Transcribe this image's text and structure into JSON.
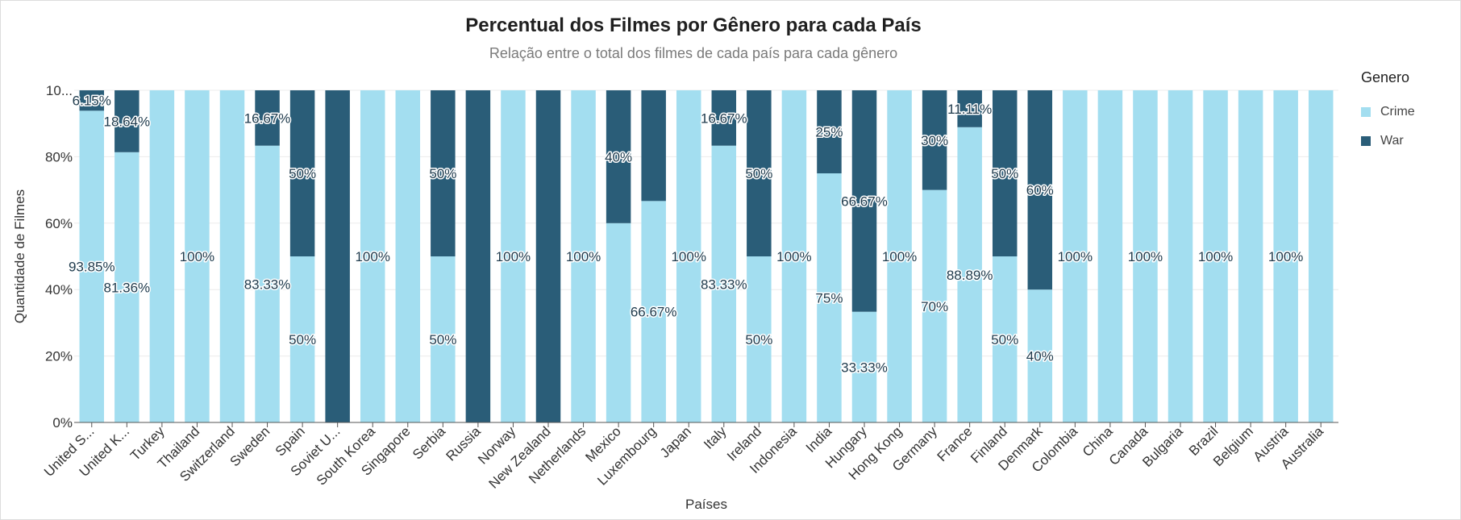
{
  "title": "Percentual dos Filmes por Gênero para cada País",
  "subtitle": "Relação entre o total dos filmes de cada país para cada gênero",
  "legend": {
    "title": "Genero",
    "items": [
      {
        "label": "Crime",
        "color": "#a3def0"
      },
      {
        "label": "War",
        "color": "#2a5d78"
      }
    ]
  },
  "chart_data": {
    "type": "bar",
    "stacked": true,
    "title": "Percentual dos Filmes por Gênero para cada País",
    "subtitle": "Relação entre o total dos filmes de cada país para cada gênero",
    "xlabel": "Países",
    "ylabel": "Quantidade de Filmes",
    "ylim": [
      0,
      100
    ],
    "y_tick_labels": [
      "0%",
      "20%",
      "40%",
      "60%",
      "80%",
      "10..."
    ],
    "grid": true,
    "legend_position": "top-right",
    "categories": [
      "United S...",
      "United K...",
      "Turkey",
      "Thailand",
      "Switzerland",
      "Sweden",
      "Spain",
      "Soviet U...",
      "South Korea",
      "Singapore",
      "Serbia",
      "Russia",
      "Norway",
      "New Zealand",
      "Netherlands",
      "Mexico",
      "Luxembourg",
      "Japan",
      "Italy",
      "Ireland",
      "Indonesia",
      "India",
      "Hungary",
      "Hong Kong",
      "Germany",
      "France",
      "Finland",
      "Denmark",
      "Colombia",
      "China",
      "Canada",
      "Bulgaria",
      "Brazil",
      "Belgium",
      "Austria",
      "Australia"
    ],
    "series": [
      {
        "name": "Crime",
        "color": "#a3def0",
        "values": [
          93.85,
          81.36,
          100,
          100,
          100,
          83.33,
          50,
          0,
          100,
          100,
          50,
          0,
          100,
          0,
          100,
          60,
          66.67,
          100,
          83.33,
          50,
          100,
          75,
          33.33,
          100,
          70,
          88.89,
          50,
          40,
          100,
          100,
          100,
          100,
          100,
          100,
          100,
          100
        ],
        "labels": [
          "93.85%",
          "81.36%",
          "",
          "100%",
          "",
          "83.33%",
          "50%",
          "",
          "100%",
          "",
          "50%",
          "",
          "100%",
          "",
          "100%",
          "",
          "66.67%",
          "100%",
          "83.33%",
          "50%",
          "100%",
          "75%",
          "33.33%",
          "100%",
          "70%",
          "88.89%",
          "50%",
          "40%",
          "100%",
          "",
          "100%",
          "",
          "100%",
          "",
          "100%",
          ""
        ]
      },
      {
        "name": "War",
        "color": "#2a5d78",
        "values": [
          6.15,
          18.64,
          0,
          0,
          0,
          16.67,
          50,
          100,
          0,
          0,
          50,
          100,
          0,
          100,
          0,
          40,
          33.33,
          0,
          16.67,
          50,
          0,
          25,
          66.67,
          0,
          30,
          11.11,
          50,
          60,
          0,
          0,
          0,
          0,
          0,
          0,
          0,
          0
        ],
        "labels": [
          "6.15%",
          "18.64%",
          "",
          "",
          "",
          "16.67%",
          "50%",
          "",
          "",
          "",
          "50%",
          "",
          "",
          "",
          "",
          "40%",
          "",
          "",
          "16.67%",
          "50%",
          "",
          "25%",
          "66.67%",
          "",
          "30%",
          "11.11%",
          "50%",
          "60%",
          "",
          "",
          "",
          "",
          "",
          "",
          "",
          ""
        ]
      }
    ]
  }
}
